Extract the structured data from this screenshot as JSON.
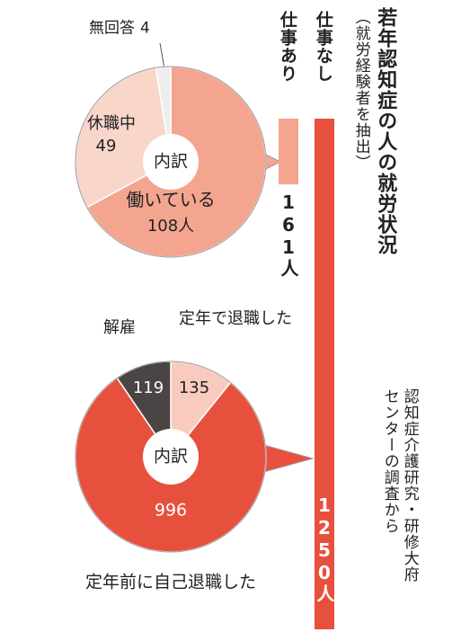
{
  "title": "若年認知症の人の就労状況",
  "subtitle": "（就労経験者を抽出）",
  "source": [
    "認知症介護研究・研修大府",
    "センターの調査から"
  ],
  "chart_data": [
    {
      "type": "bar",
      "categories": [
        "仕事なし",
        "仕事あり"
      ],
      "values": [
        1250,
        161
      ],
      "value_labels": [
        "1250人",
        "161人"
      ],
      "colors": [
        "#e8503e",
        "#f4a58f"
      ]
    },
    {
      "type": "pie",
      "title": "内訳",
      "categories": [
        "働いている",
        "休職中",
        "無回答"
      ],
      "values": [
        108,
        49,
        4
      ],
      "value_labels": [
        "108人",
        "49",
        "4"
      ],
      "colors": [
        "#f4a58f",
        "#f9d6ca",
        "#eeeeee"
      ]
    },
    {
      "type": "pie",
      "title": "内訳",
      "categories": [
        "定年で退職した",
        "定年前に自己退職した",
        "解雇"
      ],
      "values": [
        135,
        996,
        119
      ],
      "value_labels": [
        "135",
        "996",
        "119"
      ],
      "colors": [
        "#f9cbbf",
        "#e8503e",
        "#4a4444"
      ]
    }
  ]
}
